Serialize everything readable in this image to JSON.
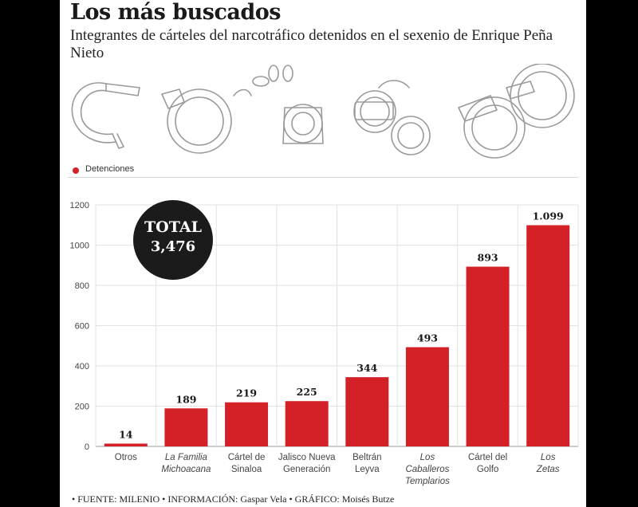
{
  "header": {
    "title": "Los más buscados",
    "subtitle": "Integrantes de cárteles del narcotráfico detenidos en el sexenio de Enrique Peña Nieto"
  },
  "legend": {
    "label": "Detenciones",
    "color": "#d42027"
  },
  "total": {
    "label": "TOTAL",
    "value": "3,476"
  },
  "footer": "• FUENTE: MILENIO • INFORMACIÓN: Gaspar Vela • GRÁFICO: Moisés Butze",
  "chart_data": {
    "type": "bar",
    "ylim": [
      0,
      1200
    ],
    "yticks": [
      0,
      200,
      400,
      600,
      800,
      1000,
      1200
    ],
    "grid": true,
    "legend_position": "top-left",
    "bar_color": "#d42027",
    "categories": [
      {
        "lines": [
          "Otros"
        ],
        "italic": false
      },
      {
        "lines": [
          "La Familia",
          "Michoacana"
        ],
        "italic": true
      },
      {
        "lines": [
          "Cártel de",
          "Sinaloa"
        ],
        "italic": false
      },
      {
        "lines": [
          "Jalisco Nueva",
          "Generación"
        ],
        "italic": false
      },
      {
        "lines": [
          "Beltrán",
          "Leyva"
        ],
        "italic": false
      },
      {
        "lines": [
          "Los",
          "Caballeros",
          "Templarios"
        ],
        "italic": true
      },
      {
        "lines": [
          "Cártel del",
          "Golfo"
        ],
        "italic": false
      },
      {
        "lines": [
          "Los",
          "Zetas"
        ],
        "italic": true
      }
    ],
    "series": [
      {
        "name": "Detenciones",
        "values": [
          14,
          189,
          219,
          225,
          344,
          493,
          893,
          1099
        ],
        "labels": [
          "14",
          "189",
          "219",
          "225",
          "344",
          "493",
          "893",
          "1.099"
        ]
      }
    ]
  }
}
